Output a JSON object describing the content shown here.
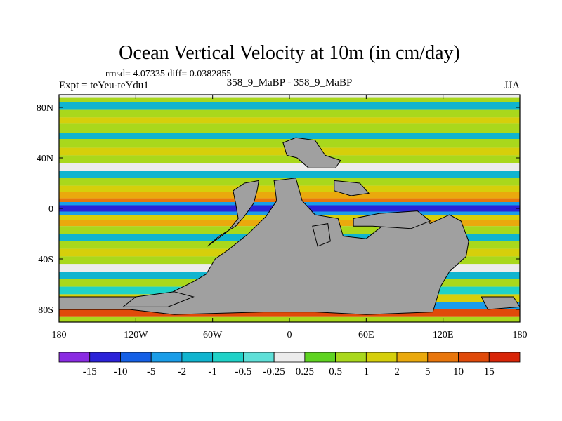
{
  "chart_data": {
    "type": "heatmap",
    "title": "Ocean Vertical Velocity at 10m (in cm/day)",
    "stats_text": "rmsd= 4.07335 diff= 0.0382855",
    "left_label": "Expt = teYeu-teYdu1",
    "center_label": "358_9_MaBP - 358_9_MaBP",
    "right_label": "JJA",
    "x_ticks": [
      {
        "value": -180,
        "label": "180"
      },
      {
        "value": -120,
        "label": "120W"
      },
      {
        "value": -60,
        "label": "60W"
      },
      {
        "value": 0,
        "label": "0"
      },
      {
        "value": 60,
        "label": "60E"
      },
      {
        "value": 120,
        "label": "120E"
      },
      {
        "value": 180,
        "label": "180"
      }
    ],
    "y_ticks": [
      {
        "value": 80,
        "label": "80N"
      },
      {
        "value": 40,
        "label": "40N"
      },
      {
        "value": 0,
        "label": "0"
      },
      {
        "value": -40,
        "label": "40S"
      },
      {
        "value": -80,
        "label": "80S"
      }
    ],
    "xlim": [
      -180,
      180
    ],
    "ylim": [
      -90,
      90
    ],
    "colorbar_levels": [
      "-15",
      "-10",
      "-5",
      "-2",
      "-1",
      "-0.5",
      "-0.25",
      "0.25",
      "0.5",
      "1",
      "2",
      "5",
      "10",
      "15"
    ],
    "colorbar_colors": [
      "#8a2be2",
      "#2b22d8",
      "#1560e6",
      "#1a9de8",
      "#10b4cf",
      "#1fd2c8",
      "#5fe0d8",
      "#ececec",
      "#5fd321",
      "#a9d81c",
      "#d6cf0b",
      "#eaa90d",
      "#e8760c",
      "#e04a0a",
      "#d82508"
    ],
    "land_color": "#a0a0a0"
  }
}
